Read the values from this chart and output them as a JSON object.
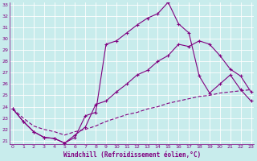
{
  "xlabel": "Windchill (Refroidissement éolien,°C)",
  "bg_color": "#c8ecec",
  "line_color": "#800080",
  "grid_color": "#ffffff",
  "ylim": [
    21,
    33
  ],
  "xlim": [
    0,
    23
  ],
  "ytick_min": 21,
  "ytick_max": 33,
  "xticks": [
    0,
    1,
    2,
    3,
    4,
    5,
    6,
    7,
    8,
    9,
    10,
    11,
    12,
    13,
    14,
    15,
    16,
    17,
    18,
    19,
    20,
    21,
    22,
    23
  ],
  "line1_x": [
    0,
    1,
    2,
    3,
    4,
    5,
    6,
    7,
    8,
    9,
    10,
    11,
    12,
    13,
    14,
    15,
    16,
    17,
    18,
    19,
    20,
    21,
    22,
    23
  ],
  "line1_y": [
    23.8,
    22.7,
    21.8,
    21.3,
    21.2,
    20.8,
    21.3,
    23.2,
    23.5,
    29.5,
    29.8,
    30.5,
    31.2,
    31.8,
    32.2,
    33.2,
    31.3,
    30.5,
    26.7,
    25.2,
    26.0,
    26.8,
    25.5,
    24.5
  ],
  "line2_x": [
    0,
    1,
    2,
    3,
    4,
    5,
    6,
    7,
    8,
    9,
    10,
    11,
    12,
    13,
    14,
    15,
    16,
    17,
    18,
    19,
    20,
    21,
    22,
    23
  ],
  "line2_y": [
    23.8,
    22.7,
    21.8,
    21.3,
    21.2,
    20.8,
    21.5,
    22.2,
    24.2,
    24.5,
    25.3,
    26.0,
    26.8,
    27.2,
    28.0,
    28.5,
    29.5,
    29.3,
    29.8,
    29.5,
    28.5,
    27.3,
    26.7,
    25.3
  ],
  "line3_x": [
    0,
    1,
    2,
    3,
    4,
    5,
    6,
    7,
    8,
    9,
    10,
    11,
    12,
    13,
    14,
    15,
    16,
    17,
    18,
    19,
    20,
    21,
    22,
    23
  ],
  "line3_y": [
    23.8,
    23.0,
    22.3,
    22.0,
    21.8,
    21.5,
    21.8,
    22.0,
    22.3,
    22.7,
    23.0,
    23.3,
    23.5,
    23.8,
    24.0,
    24.3,
    24.5,
    24.7,
    24.9,
    25.0,
    25.2,
    25.3,
    25.4,
    25.5
  ]
}
